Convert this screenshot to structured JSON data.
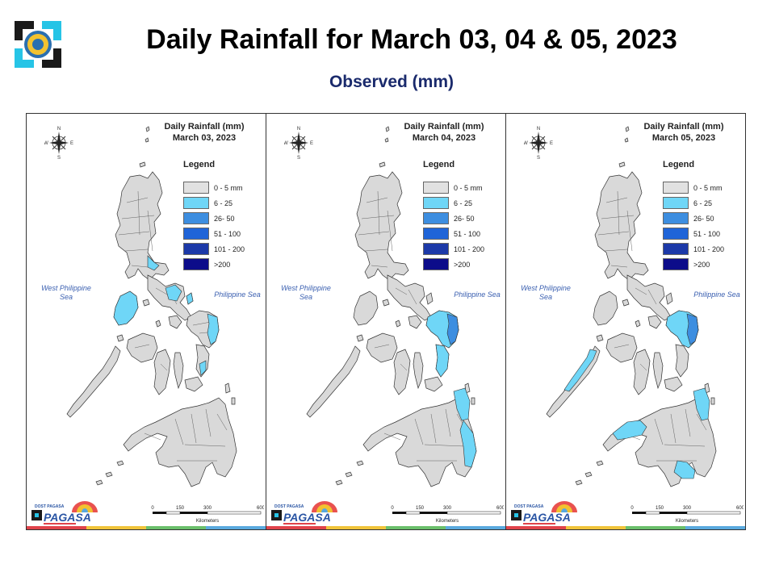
{
  "header": {
    "title": "Daily Rainfall for March 03, 04 & 05, 2023",
    "subtitle": "Observed (mm)"
  },
  "legend": {
    "title": "Legend",
    "items": [
      {
        "label": "0 - 5 mm",
        "color": "#e1e1e1"
      },
      {
        "label": "6 - 25",
        "color": "#6fd6f7"
      },
      {
        "label": "26- 50",
        "color": "#3d8ee0"
      },
      {
        "label": "51 - 100",
        "color": "#1f64d8"
      },
      {
        "label": "101 - 200",
        "color": "#1c39a8"
      },
      {
        "label": ">200",
        "color": "#0c0c8a"
      }
    ]
  },
  "labels": {
    "west_sea": "West Philippine Sea",
    "east_sea": "Philippine Sea",
    "compass_n": "N",
    "compass_s": "S",
    "compass_e": "E",
    "compass_w": "W",
    "scale_ticks": [
      "0",
      "150",
      "300",
      "600"
    ],
    "scale_unit": "Kilometers",
    "agency_top": "DOST PAGASA",
    "agency": "PAGASA"
  },
  "maps": [
    {
      "title_line1": "Daily Rainfall (mm)",
      "date": "March 03, 2023",
      "rain_areas": [
        {
          "region": "Mindoro",
          "class": "6 - 25"
        },
        {
          "region": "Camarines Sur",
          "class": "6 - 25"
        },
        {
          "region": "Catanduanes",
          "class": "6 - 25"
        },
        {
          "region": "Aurora",
          "class": "6 - 25"
        },
        {
          "region": "Eastern Samar",
          "class": "6 - 25"
        },
        {
          "region": "Southern Leyte",
          "class": "6 - 25"
        }
      ]
    },
    {
      "title_line1": "Daily Rainfall (mm)",
      "date": "March 04, 2023",
      "rain_areas": [
        {
          "region": "Samar",
          "class": "6 - 25"
        },
        {
          "region": "Eastern Samar",
          "class": "26- 50"
        },
        {
          "region": "Leyte",
          "class": "6 - 25"
        },
        {
          "region": "Surigao",
          "class": "6 - 25"
        },
        {
          "region": "Davao Oriental",
          "class": "6 - 25"
        }
      ]
    },
    {
      "title_line1": "Daily Rainfall (mm)",
      "date": "March 05, 2023",
      "rain_areas": [
        {
          "region": "Palawan",
          "class": "6 - 25"
        },
        {
          "region": "Samar",
          "class": "6 - 25"
        },
        {
          "region": "Eastern Samar",
          "class": "26- 50"
        },
        {
          "region": "Zamboanga",
          "class": "6 - 25"
        },
        {
          "region": "Surigao",
          "class": "6 - 25"
        },
        {
          "region": "Davao",
          "class": "6 - 25"
        }
      ]
    }
  ],
  "stripe_colors": [
    "#e0434b",
    "#f0c43a",
    "#6abf6b",
    "#5aa9de"
  ]
}
